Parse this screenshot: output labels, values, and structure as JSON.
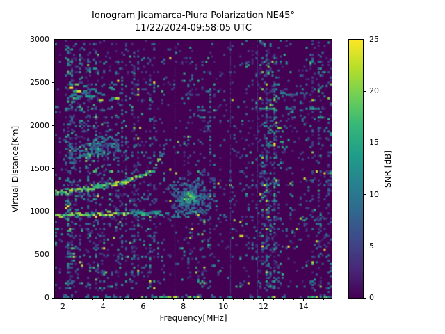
{
  "chart_data": {
    "type": "heatmap",
    "title": "Ionogram Jicamarca-Piura Polarization NE45°",
    "subtitle": "11/22/2024-09:58:05 UTC",
    "xlabel": "Frequency[MHz]",
    "ylabel": "Virtual Distance[Km]",
    "x_range_mhz": [
      1.6,
      15.4
    ],
    "y_range_km": [
      0,
      3000
    ],
    "x_ticks": [
      2,
      4,
      6,
      8,
      10,
      12,
      14
    ],
    "x_minor_step_mhz": 0.5,
    "y_ticks": [
      0,
      500,
      1000,
      1500,
      2000,
      2500,
      3000
    ],
    "y_minor_step_km": 100,
    "grid": false,
    "colorbar": {
      "label": "SNR [dB]",
      "range_db": [
        0,
        25
      ],
      "ticks": [
        0,
        5,
        10,
        15,
        20,
        25
      ],
      "colormap": "viridis",
      "position": "right"
    },
    "colormap_stops": [
      "#440154",
      "#482878",
      "#3e4989",
      "#31688e",
      "#26828e",
      "#1f9e89",
      "#35b779",
      "#6ece58",
      "#b5de2b",
      "#fde725"
    ],
    "background_db": 0,
    "grid_cells": {
      "cols": 138,
      "rows": 148
    },
    "noise_bands_mhz": [
      {
        "from": 1.6,
        "to": 2.15,
        "mult": 0.6,
        "hot": false
      },
      {
        "from": 2.15,
        "to": 2.65,
        "mult": 2.3,
        "hot": true
      },
      {
        "from": 2.65,
        "to": 3.1,
        "mult": 1.0,
        "hot": false
      },
      {
        "from": 3.1,
        "to": 4.6,
        "mult": 1.35,
        "hot": false
      },
      {
        "from": 4.6,
        "to": 6.85,
        "mult": 1.0,
        "hot": false
      },
      {
        "from": 6.85,
        "to": 7.9,
        "mult": 0.4,
        "hot": false
      },
      {
        "from": 7.9,
        "to": 9.4,
        "mult": 1.0,
        "hot": false
      },
      {
        "from": 9.4,
        "to": 11.9,
        "mult": 0.55,
        "hot": false
      },
      {
        "from": 11.9,
        "to": 12.75,
        "mult": 2.1,
        "hot": true
      },
      {
        "from": 12.75,
        "to": 13.7,
        "mult": 0.8,
        "hot": false
      },
      {
        "from": 13.7,
        "to": 13.95,
        "mult": 1.6,
        "hot": false
      },
      {
        "from": 13.95,
        "to": 14.15,
        "mult": 0.8,
        "hot": false
      },
      {
        "from": 14.15,
        "to": 15.4,
        "mult": 1.15,
        "hot": false
      }
    ],
    "vertical_hairlines_mhz": [
      7.55,
      10.35,
      11.7
    ],
    "features": {
      "f_trace_points_mhz_km": [
        [
          1.6,
          1220
        ],
        [
          2.2,
          1235
        ],
        [
          3.0,
          1262
        ],
        [
          3.8,
          1295
        ],
        [
          4.6,
          1330
        ],
        [
          5.4,
          1375
        ],
        [
          6.0,
          1425
        ],
        [
          6.4,
          1480
        ],
        [
          6.7,
          1555
        ],
        [
          6.9,
          1665
        ]
      ],
      "f_trace_tip": {
        "from_mhz": 6.9,
        "to_mhz": 7.15,
        "km_start": 1665,
        "km_end": 1760
      },
      "flat_trace": {
        "from_mhz": 1.6,
        "to_mhz": 9.2,
        "km_start": 955,
        "km_end": 1000,
        "gap_mhz": [
          6.85,
          7.75
        ]
      },
      "patch_cloud": {
        "center_mhz": 8.35,
        "center_km": 1160,
        "sigma_mhz": 0.5,
        "sigma_km": 95,
        "count": 300
      },
      "second_hop_cloud": {
        "from_mhz_km": [
          2.2,
          1620
        ],
        "to_mhz_km": [
          5.0,
          1810
        ],
        "sigma_km": 70,
        "count": 190
      },
      "third_hop_band": {
        "from_mhz": 2.1,
        "to_mhz": 4.9,
        "km": 2380,
        "sigma_km": 45,
        "count": 26
      },
      "row_streaks": [
        {
          "km": 2380,
          "from_mhz": 12.8,
          "to_mhz": 15.3
        },
        {
          "km": 2200,
          "from_mhz": 13.2,
          "to_mhz": 15.0
        }
      ],
      "ground_row_km": 8,
      "ground_hot_mhz": [
        [
          5.7,
          7.7
        ],
        [
          8.2,
          8.8
        ],
        [
          12.1,
          12.7
        ],
        [
          14.2,
          15.4
        ]
      ]
    },
    "snr_levels_db": {
      "background": 0,
      "speckle_low": [
        2,
        6
      ],
      "speckle_mid": [
        6,
        11
      ],
      "speckle_high": [
        11,
        17
      ],
      "speckle_peak": [
        18,
        25
      ],
      "trace": [
        10,
        25
      ]
    }
  }
}
